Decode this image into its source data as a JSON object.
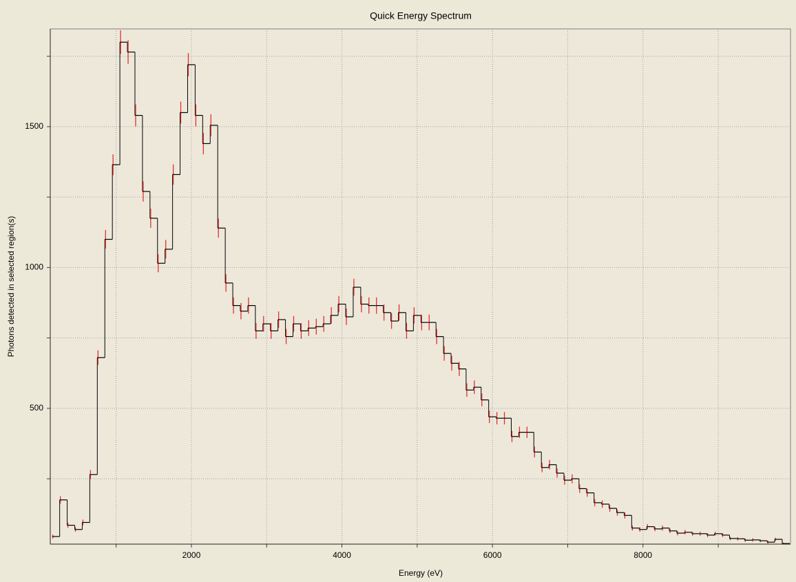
{
  "chart_data": {
    "type": "histogram",
    "title": "Quick Energy Spectrum",
    "xlabel": "Energy (eV)",
    "ylabel": "Photons detected in selected region(s)",
    "bins": [
      150,
      250,
      350,
      450,
      550,
      650,
      750,
      850,
      950,
      1050,
      1150,
      1250,
      1350,
      1450,
      1550,
      1650,
      1750,
      1850,
      1950,
      2050,
      2150,
      2250,
      2350,
      2450,
      2550,
      2650,
      2750,
      2850,
      2950,
      3050,
      3150,
      3250,
      3350,
      3450,
      3550,
      3650,
      3750,
      3850,
      3950,
      4050,
      4150,
      4250,
      4350,
      4450,
      4550,
      4650,
      4750,
      4850,
      4950,
      5050,
      5150,
      5250,
      5350,
      5450,
      5550,
      5650,
      5750,
      5850,
      5950,
      6050,
      6150,
      6250,
      6350,
      6450,
      6550,
      6650,
      6750,
      6850,
      6950,
      7050,
      7150,
      7250,
      7350,
      7450,
      7550,
      7650,
      7750,
      7850,
      7950,
      8050,
      8150,
      8250,
      8350,
      8450,
      8550,
      8650,
      8750,
      8850,
      8950,
      9050,
      9150,
      9250,
      9350,
      9450,
      9550,
      9650,
      9750,
      9850,
      9950
    ],
    "values": [
      45,
      175,
      85,
      70,
      95,
      265,
      680,
      1100,
      1365,
      1800,
      1765,
      1540,
      1270,
      1175,
      1015,
      1065,
      1330,
      1550,
      1720,
      1540,
      1440,
      1505,
      1140,
      945,
      865,
      845,
      865,
      775,
      800,
      775,
      815,
      755,
      800,
      775,
      785,
      790,
      800,
      830,
      870,
      825,
      930,
      870,
      865,
      865,
      840,
      810,
      840,
      775,
      830,
      805,
      805,
      755,
      695,
      660,
      640,
      565,
      575,
      530,
      470,
      465,
      465,
      400,
      415,
      415,
      345,
      290,
      300,
      270,
      245,
      250,
      215,
      200,
      165,
      160,
      145,
      130,
      120,
      75,
      70,
      80,
      72,
      75,
      65,
      57,
      60,
      55,
      55,
      50,
      55,
      50,
      38,
      37,
      32,
      33,
      30,
      25,
      35,
      20
    ],
    "errors": [
      7,
      13,
      9,
      8,
      10,
      16,
      26,
      33,
      37,
      42,
      42,
      39,
      36,
      34,
      32,
      33,
      36,
      39,
      41,
      39,
      38,
      39,
      34,
      31,
      29,
      29,
      29,
      28,
      28,
      28,
      29,
      27,
      28,
      28,
      28,
      28,
      28,
      29,
      29,
      29,
      30,
      29,
      29,
      29,
      29,
      28,
      29,
      28,
      29,
      28,
      28,
      27,
      26,
      26,
      25,
      24,
      24,
      23,
      22,
      22,
      22,
      20,
      20,
      20,
      19,
      17,
      17,
      16,
      16,
      16,
      15,
      14,
      13,
      13,
      12,
      11,
      11,
      9,
      8,
      9,
      8,
      9,
      8,
      8,
      8,
      7,
      7,
      7,
      7,
      7,
      6,
      6,
      6,
      6,
      5,
      5,
      6,
      4
    ],
    "color": "#000000",
    "error_color": "#e03030",
    "xlim": [
      125,
      9960
    ],
    "ylim": [
      18,
      1847
    ],
    "xticks": [
      2000,
      4000,
      6000,
      8000
    ],
    "xgrid": [
      1000,
      2000,
      3000,
      4000,
      5000,
      6000,
      7000,
      8000,
      9000
    ],
    "yticks": [
      500,
      1000,
      1500
    ],
    "ygrid": [
      250,
      500,
      750,
      1000,
      1250,
      1500,
      1750
    ],
    "grid": true
  }
}
